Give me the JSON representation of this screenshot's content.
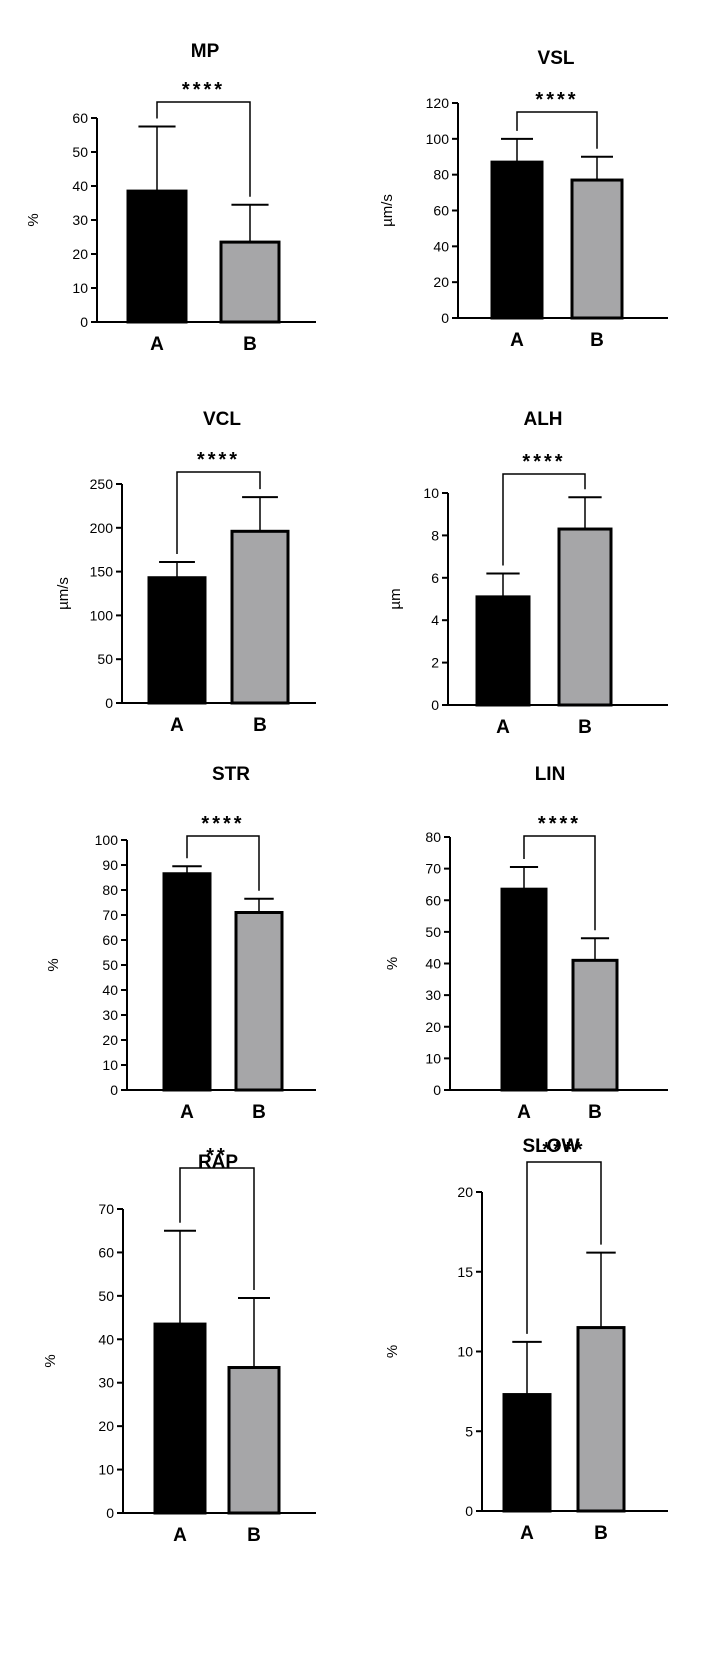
{
  "colors": {
    "bar_a": "#000000",
    "bar_b": "#a6a6a8",
    "axis": "#000000"
  },
  "chart_data": [
    {
      "type": "bar",
      "title": "MP",
      "ylabel": "%",
      "categories": [
        "A",
        "B"
      ],
      "values": [
        38.5,
        23.5
      ],
      "errors": [
        19,
        11
      ],
      "ylim": [
        0,
        60
      ],
      "yticks": [
        "0",
        "10",
        "20",
        "30",
        "40",
        "50",
        "60"
      ],
      "significance": "****",
      "grid": false
    },
    {
      "type": "bar",
      "title": "VSL",
      "ylabel": "µm/s",
      "categories": [
        "A",
        "B"
      ],
      "values": [
        87,
        77
      ],
      "errors": [
        13,
        13
      ],
      "ylim": [
        0,
        120
      ],
      "yticks": [
        "0",
        "20",
        "40",
        "60",
        "80",
        "100",
        "120"
      ],
      "significance": "****",
      "grid": false
    },
    {
      "type": "bar",
      "title": "VCL",
      "ylabel": "µm/s",
      "categories": [
        "A",
        "B"
      ],
      "values": [
        143,
        196
      ],
      "errors": [
        18,
        39
      ],
      "ylim": [
        0,
        250
      ],
      "yticks": [
        "0",
        "50",
        "100",
        "150",
        "200",
        "250"
      ],
      "significance": "****",
      "grid": false
    },
    {
      "type": "bar",
      "title": "ALH",
      "ylabel": "µm",
      "categories": [
        "A",
        "B"
      ],
      "values": [
        5.1,
        8.3
      ],
      "errors": [
        1.1,
        1.5
      ],
      "ylim": [
        0,
        10
      ],
      "yticks": [
        "0",
        "2",
        "4",
        "6",
        "8",
        "10"
      ],
      "significance": "****",
      "grid": false
    },
    {
      "type": "bar",
      "title": "STR",
      "ylabel": "%",
      "categories": [
        "A",
        "B"
      ],
      "values": [
        86.5,
        71
      ],
      "errors": [
        3,
        5.5
      ],
      "ylim": [
        0,
        100
      ],
      "yticks": [
        "0",
        "10",
        "20",
        "30",
        "40",
        "50",
        "60",
        "70",
        "80",
        "90",
        "100"
      ],
      "significance": "****",
      "grid": false
    },
    {
      "type": "bar",
      "title": "LIN",
      "ylabel": "%",
      "categories": [
        "A",
        "B"
      ],
      "values": [
        63.5,
        41
      ],
      "errors": [
        7,
        7
      ],
      "ylim": [
        0,
        80
      ],
      "yticks": [
        "0",
        "10",
        "20",
        "30",
        "40",
        "50",
        "60",
        "70",
        "80"
      ],
      "significance": "****",
      "grid": false
    },
    {
      "type": "bar",
      "title": "RAP",
      "ylabel": "%",
      "categories": [
        "A",
        "B"
      ],
      "values": [
        43.5,
        33.5
      ],
      "errors": [
        21.5,
        16
      ],
      "ylim": [
        0,
        70
      ],
      "yticks": [
        "0",
        "10",
        "20",
        "30",
        "40",
        "50",
        "60",
        "70"
      ],
      "significance": "**",
      "grid": false
    },
    {
      "type": "bar",
      "title": "SLOW",
      "ylabel": "%",
      "categories": [
        "A",
        "B"
      ],
      "values": [
        7.3,
        11.5
      ],
      "errors": [
        3.3,
        4.7
      ],
      "ylim": [
        0,
        20
      ],
      "yticks": [
        "0",
        "5",
        "10",
        "15",
        "20"
      ],
      "significance": "****",
      "grid": false
    }
  ]
}
